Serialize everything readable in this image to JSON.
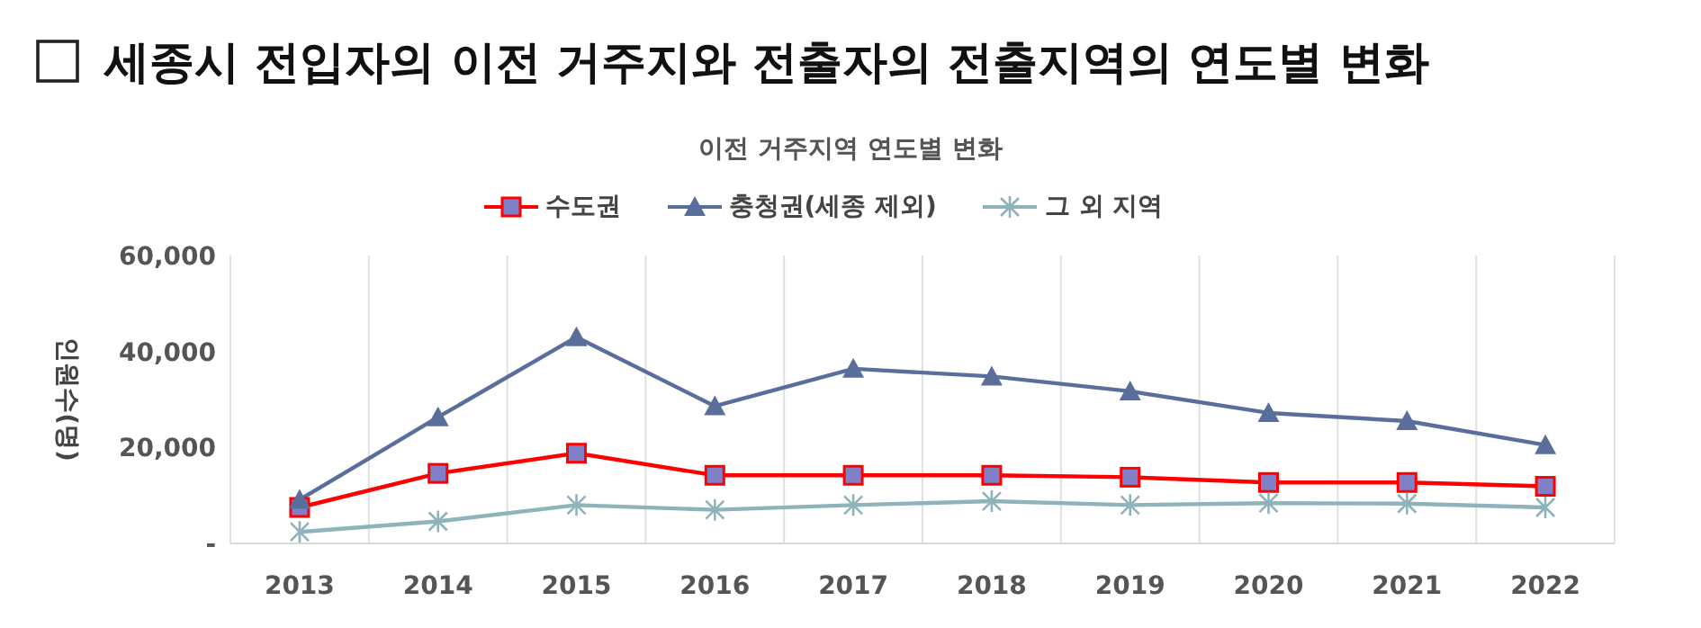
{
  "chart_data": {
    "type": "line",
    "title": "세종시 전입자의 이전 거주지와 전출자의 전출지역의 연도별 변화",
    "subtitle": "이전 거주지역 연도별 변화",
    "ylabel": "인원수(명)",
    "categories": [
      "2013",
      "2014",
      "2015",
      "2016",
      "2017",
      "2018",
      "2019",
      "2020",
      "2021",
      "2022"
    ],
    "series": [
      {
        "name": "수도권",
        "color": "#ff0000",
        "marker": "square",
        "values": [
          7500,
          14600,
          18800,
          14200,
          14200,
          14200,
          13800,
          12700,
          12700,
          11900
        ]
      },
      {
        "name": "충청권(세종 제외)",
        "color": "#5a6e9c",
        "marker": "triangle",
        "values": [
          9100,
          26300,
          43000,
          28600,
          36400,
          34800,
          31700,
          27200,
          25500,
          20500
        ]
      },
      {
        "name": "그 외 지역",
        "color": "#8fb3bb",
        "marker": "cross",
        "values": [
          2400,
          4600,
          8000,
          7000,
          8000,
          8800,
          8000,
          8400,
          8300,
          7500
        ]
      }
    ],
    "ylim": [
      0,
      60000
    ],
    "yticks": [
      {
        "value": 0,
        "label": "-"
      },
      {
        "value": 20000,
        "label": "20,000"
      },
      {
        "value": 40000,
        "label": "40,000"
      },
      {
        "value": 60000,
        "label": "60,000"
      }
    ],
    "grid": "x",
    "legend": "top",
    "line_style": "solid"
  }
}
